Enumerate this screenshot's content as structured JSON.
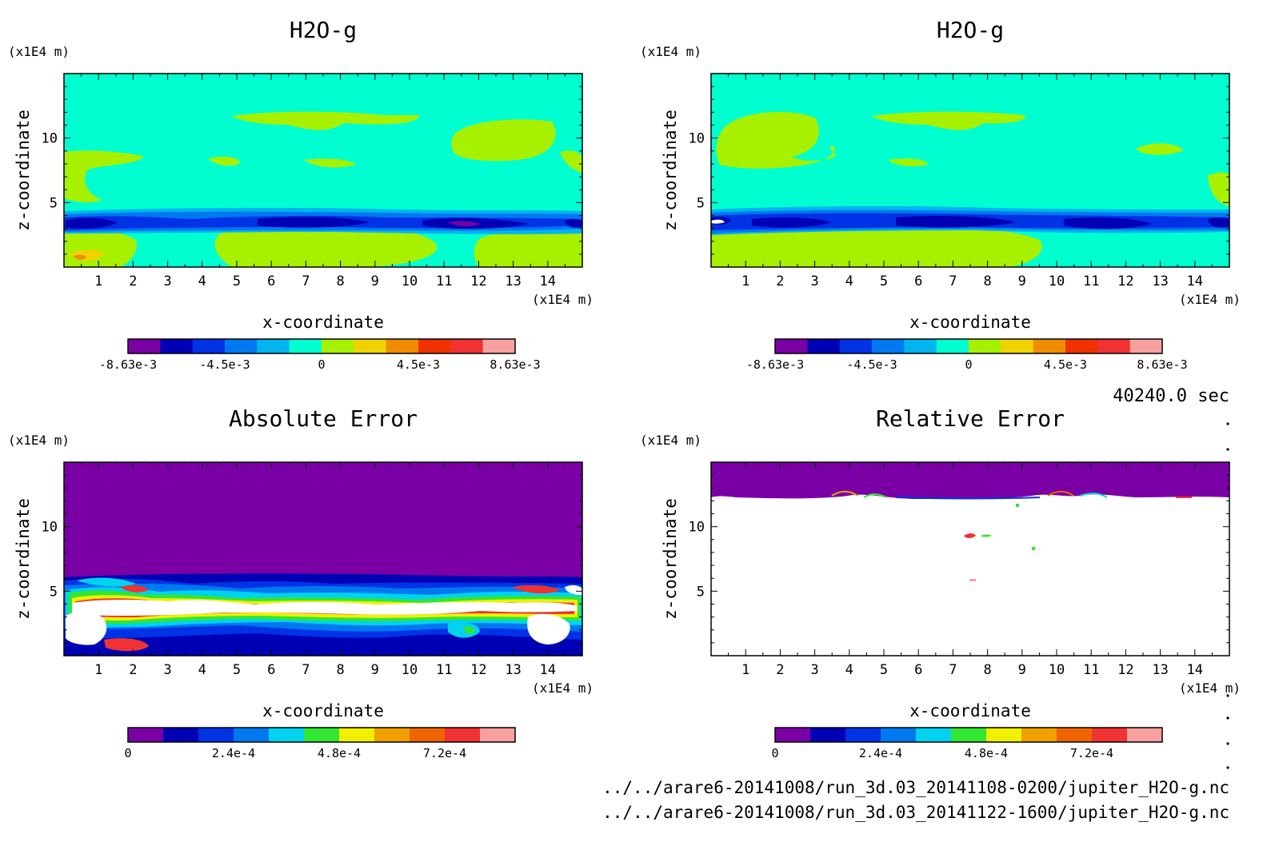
{
  "chart_data": [
    {
      "type": "heatmap",
      "title": "H2O-g",
      "xlabel": "x-coordinate",
      "ylabel": "z-coordinate",
      "x_unit": "(x1E4 m)",
      "z_unit": "(x1E4 m)",
      "x_ticks": [
        "1",
        "2",
        "3",
        "4",
        "5",
        "6",
        "7",
        "8",
        "9",
        "10",
        "11",
        "12",
        "13",
        "14"
      ],
      "z_ticks": [
        "5",
        "10"
      ],
      "xlim": [
        0,
        15
      ],
      "zlim": [
        0,
        15
      ],
      "colorbar": {
        "colors": [
          "#7a00a6",
          "#0000b4",
          "#0032e6",
          "#0078f0",
          "#00b4f0",
          "#00ffd0",
          "#a6f000",
          "#f0d200",
          "#f08c00",
          "#f03200",
          "#f03232",
          "#f8a0a0"
        ],
        "labels": [
          "-8.63e-3",
          "-4.5e-3",
          "0",
          "4.5e-3",
          "8.63e-3"
        ]
      }
    },
    {
      "type": "heatmap",
      "title": "H2O-g",
      "xlabel": "x-coordinate",
      "ylabel": "z-coordinate",
      "x_unit": "(x1E4 m)",
      "z_unit": "(x1E4 m)",
      "x_ticks": [
        "1",
        "2",
        "3",
        "4",
        "5",
        "6",
        "7",
        "8",
        "9",
        "10",
        "11",
        "12",
        "13",
        "14"
      ],
      "z_ticks": [
        "5",
        "10"
      ],
      "xlim": [
        0,
        15
      ],
      "zlim": [
        0,
        15
      ],
      "colorbar": {
        "colors": [
          "#7a00a6",
          "#0000b4",
          "#0032e6",
          "#0078f0",
          "#00b4f0",
          "#00ffd0",
          "#a6f000",
          "#f0d200",
          "#f08c00",
          "#f03200",
          "#f03232",
          "#f8a0a0"
        ],
        "labels": [
          "-8.63e-3",
          "-4.5e-3",
          "0",
          "4.5e-3",
          "8.63e-3"
        ]
      }
    },
    {
      "type": "heatmap",
      "title": "Absolute Error",
      "xlabel": "x-coordinate",
      "ylabel": "z-coordinate",
      "x_unit": "(x1E4 m)",
      "z_unit": "(x1E4 m)",
      "x_ticks": [
        "1",
        "2",
        "3",
        "4",
        "5",
        "6",
        "7",
        "8",
        "9",
        "10",
        "11",
        "12",
        "13",
        "14"
      ],
      "z_ticks": [
        "5",
        "10"
      ],
      "xlim": [
        0,
        15
      ],
      "zlim": [
        0,
        15
      ],
      "colorbar": {
        "colors": [
          "#7a00a6",
          "#0000b4",
          "#0032e6",
          "#0078f0",
          "#00d2f0",
          "#32e632",
          "#f0f000",
          "#f0a000",
          "#f06400",
          "#f03232",
          "#f8a0a0"
        ],
        "labels": [
          "0",
          "2.4e-4",
          "4.8e-4",
          "7.2e-4"
        ]
      }
    },
    {
      "type": "heatmap",
      "title": "Relative Error",
      "xlabel": "x-coordinate",
      "ylabel": "z-coordinate",
      "x_unit": "(x1E4 m)",
      "z_unit": "(x1E4 m)",
      "x_ticks": [
        "1",
        "2",
        "3",
        "4",
        "5",
        "6",
        "7",
        "8",
        "9",
        "10",
        "11",
        "12",
        "13",
        "14"
      ],
      "z_ticks": [
        "5",
        "10"
      ],
      "xlim": [
        0,
        15
      ],
      "zlim": [
        0,
        15
      ],
      "colorbar": {
        "colors": [
          "#7a00a6",
          "#0000b4",
          "#0032e6",
          "#0078f0",
          "#00d2f0",
          "#32e632",
          "#f0f000",
          "#f0a000",
          "#f06400",
          "#f03232",
          "#f8a0a0"
        ],
        "labels": [
          "0",
          "2.4e-4",
          "4.8e-4",
          "7.2e-4"
        ]
      }
    }
  ],
  "time_stamp": "40240.0 sec",
  "files": [
    "../../arare6-20141008/run_3d.03_20141108-0200/jupiter_H2O-g.nc",
    "../../arare6-20141008/run_3d.03_20141122-1600/jupiter_H2O-g.nc"
  ]
}
